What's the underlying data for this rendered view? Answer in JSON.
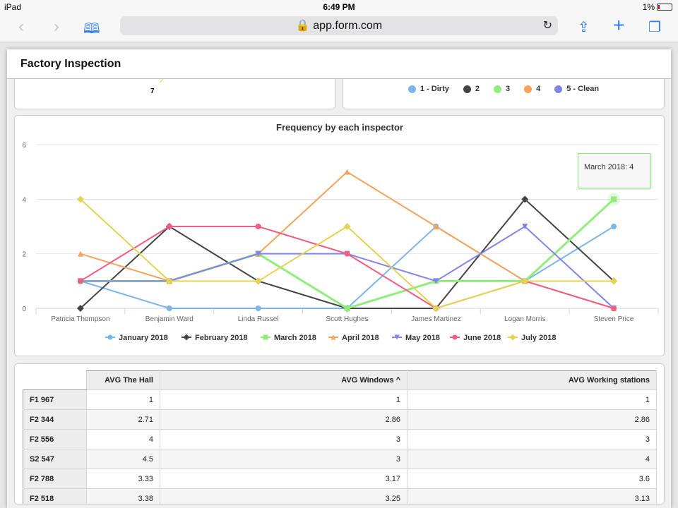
{
  "status_bar": {
    "device": "iPad",
    "time": "6:49 PM",
    "battery": "1%"
  },
  "browser": {
    "url": "app.form.com",
    "icons": [
      "back-icon",
      "forward-icon",
      "bookmarks-icon",
      "lock-icon",
      "reload-icon",
      "share-icon",
      "new-tab-icon",
      "tabs-icon"
    ]
  },
  "page": {
    "title": "Factory Inspection"
  },
  "top_left_card": {
    "label": "7"
  },
  "pie_legend": [
    {
      "label": "1 - Dirty",
      "color": "#7cb5ec"
    },
    {
      "label": "2",
      "color": "#434348"
    },
    {
      "label": "3",
      "color": "#90ed7d"
    },
    {
      "label": "4",
      "color": "#f7a35c"
    },
    {
      "label": "5 - Clean",
      "color": "#8085e9"
    }
  ],
  "chart_data": {
    "type": "line",
    "title": "Frequency by each inspector",
    "categories": [
      "Patricia Thompson",
      "Benjamin Ward",
      "Linda Russel",
      "Scott Hughes",
      "James Martinez",
      "Logan Morris",
      "Steven Price"
    ],
    "ylim": [
      0,
      6
    ],
    "yticks": [
      "0",
      "2",
      "4",
      "6"
    ],
    "grid": true,
    "legend": "bottom",
    "series": [
      {
        "name": "January 2018",
        "color": "#7cb5ec",
        "marker": "circle",
        "values": [
          1,
          0,
          0,
          0,
          3,
          1,
          3
        ]
      },
      {
        "name": "February 2018",
        "color": "#434348",
        "marker": "diamond",
        "values": [
          0,
          3,
          1,
          0,
          0,
          4,
          1
        ]
      },
      {
        "name": "March 2018",
        "color": "#90ed7d",
        "marker": "square",
        "values": [
          1,
          1,
          2,
          0,
          1,
          1,
          4
        ]
      },
      {
        "name": "April 2018",
        "color": "#f7a35c",
        "marker": "triangle",
        "values": [
          2,
          1,
          2,
          5,
          3,
          1,
          0
        ]
      },
      {
        "name": "May 2018",
        "color": "#8085e9",
        "marker": "triangle-down",
        "values": [
          1,
          1,
          2,
          2,
          1,
          3,
          0
        ]
      },
      {
        "name": "June 2018",
        "color": "#f15c80",
        "marker": "circle",
        "values": [
          1,
          3,
          3,
          2,
          0,
          1,
          0
        ]
      },
      {
        "name": "July 2018",
        "color": "#e4d354",
        "marker": "diamond",
        "values": [
          4,
          1,
          1,
          3,
          0,
          1,
          1
        ]
      }
    ],
    "tooltip": "March 2018: 4"
  },
  "table": {
    "headers": [
      "AVG The Hall",
      "AVG Windows ^",
      "AVG Working stations"
    ],
    "rows": [
      [
        "F1 967",
        "1",
        "1",
        "1"
      ],
      [
        "F2 344",
        "2.71",
        "2.86",
        "2.86"
      ],
      [
        "F2 556",
        "4",
        "3",
        "3"
      ],
      [
        "S2 547",
        "4.5",
        "3",
        "4"
      ],
      [
        "F2 788",
        "3.33",
        "3.17",
        "3.6"
      ],
      [
        "F2 518",
        "3.38",
        "3.25",
        "3.13"
      ]
    ]
  }
}
